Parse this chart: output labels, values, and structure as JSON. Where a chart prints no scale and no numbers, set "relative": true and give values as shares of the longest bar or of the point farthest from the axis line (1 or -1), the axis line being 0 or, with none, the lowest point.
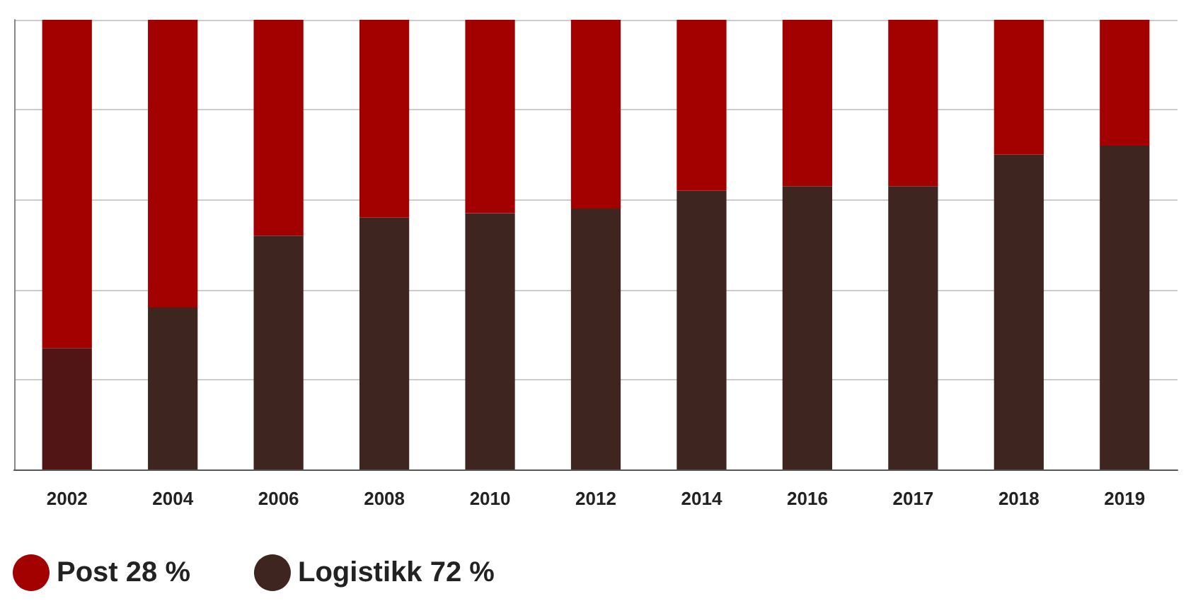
{
  "chart_data": {
    "type": "bar",
    "stacked": true,
    "relative": true,
    "grid": "y",
    "legend": "bottom left",
    "categories": [
      "2002",
      "2004",
      "2006",
      "2008",
      "2010",
      "2012",
      "2014",
      "2016",
      "2017",
      "2018",
      "2019"
    ],
    "series": [
      {
        "name": "Logistikk 72 %",
        "color": "#3f2520",
        "colors": [
          "#521515",
          "#3f2520",
          "#3f2520",
          "#3f2520",
          "#3f2520",
          "#3f2520",
          "#3f2520",
          "#3f2520",
          "#3f2520",
          "#3f2520",
          "#3f2520"
        ],
        "values": [
          0.27,
          0.36,
          0.52,
          0.56,
          0.57,
          0.58,
          0.62,
          0.63,
          0.63,
          0.7,
          0.72
        ]
      },
      {
        "name": "Post 28 %",
        "color": "#a30000",
        "values": [
          0.73,
          0.64,
          0.48,
          0.44,
          0.43,
          0.42,
          0.38,
          0.37,
          0.37,
          0.3,
          0.28
        ]
      }
    ]
  }
}
